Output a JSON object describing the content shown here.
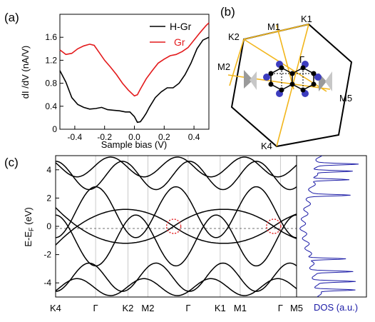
{
  "panels": {
    "a": {
      "label": "(a)",
      "chart_data": {
        "type": "line",
        "xlabel": "Sample bias (V)",
        "ylabel": "dI /dV  (nA/V)",
        "xlim": [
          -0.5,
          0.5
        ],
        "ylim": [
          0,
          2.0
        ],
        "xticks": [
          "-0.4",
          "-0.2",
          "0.0",
          "0.2",
          "0.4"
        ],
        "yticks": [
          "0",
          "0.4",
          "0.8",
          "1.2",
          "1.6"
        ],
        "legend": "top-right",
        "series": [
          {
            "name": "H-Gr",
            "color": "#000000",
            "x": [
              -0.5,
              -0.46,
              -0.42,
              -0.38,
              -0.34,
              -0.3,
              -0.26,
              -0.22,
              -0.18,
              -0.14,
              -0.1,
              -0.06,
              -0.03,
              0.0,
              0.02,
              0.04,
              0.06,
              0.08,
              0.1,
              0.14,
              0.18,
              0.22,
              0.26,
              0.3,
              0.34,
              0.38,
              0.42,
              0.46,
              0.5
            ],
            "y": [
              1.02,
              0.82,
              0.55,
              0.43,
              0.38,
              0.35,
              0.36,
              0.38,
              0.34,
              0.33,
              0.32,
              0.3,
              0.3,
              0.22,
              0.12,
              0.13,
              0.2,
              0.28,
              0.38,
              0.55,
              0.65,
              0.72,
              0.72,
              0.8,
              0.95,
              1.15,
              1.4,
              1.55,
              1.6
            ]
          },
          {
            "name": "Gr",
            "color": "#e31a1c",
            "x": [
              -0.5,
              -0.46,
              -0.42,
              -0.38,
              -0.34,
              -0.3,
              -0.27,
              -0.24,
              -0.2,
              -0.16,
              -0.12,
              -0.08,
              -0.04,
              0.0,
              0.02,
              0.04,
              0.08,
              0.12,
              0.16,
              0.2,
              0.24,
              0.28,
              0.32,
              0.36,
              0.4,
              0.44,
              0.48,
              0.5
            ],
            "y": [
              1.38,
              1.3,
              1.32,
              1.4,
              1.45,
              1.48,
              1.46,
              1.35,
              1.2,
              1.08,
              0.95,
              0.8,
              0.68,
              0.58,
              0.6,
              0.7,
              0.88,
              1.02,
              1.15,
              1.22,
              1.28,
              1.3,
              1.35,
              1.42,
              1.55,
              1.68,
              1.8,
              1.85
            ]
          }
        ]
      }
    },
    "b": {
      "label": "(b)",
      "points": [
        "K1",
        "M1",
        "K2",
        "M2",
        "Γ",
        "M5",
        "K4"
      ]
    },
    "c": {
      "label": "(c)",
      "chart_data": {
        "type": "line",
        "ylabel": "E-E",
        "ylabel_sub": "F",
        "ylabel_unit": " (eV)",
        "ylim": [
          -5,
          5
        ],
        "yticks": [
          "4",
          "2",
          "0",
          "-2",
          "-4"
        ],
        "kpath": [
          "K4",
          "Γ",
          "K2",
          "M2",
          "Γ",
          "K1",
          "M1",
          "Γ",
          "M5"
        ],
        "kpath_positions": [
          0.0,
          0.166,
          0.3,
          0.383,
          0.55,
          0.683,
          0.766,
          0.933,
          1.0
        ],
        "dirac_points": [
          {
            "k": 0.49,
            "E": 0.0
          },
          {
            "k": 0.905,
            "E": 0.0
          }
        ],
        "dos_label": "DOS (a.u.)",
        "dos_color": "#1a1aa6"
      }
    }
  }
}
